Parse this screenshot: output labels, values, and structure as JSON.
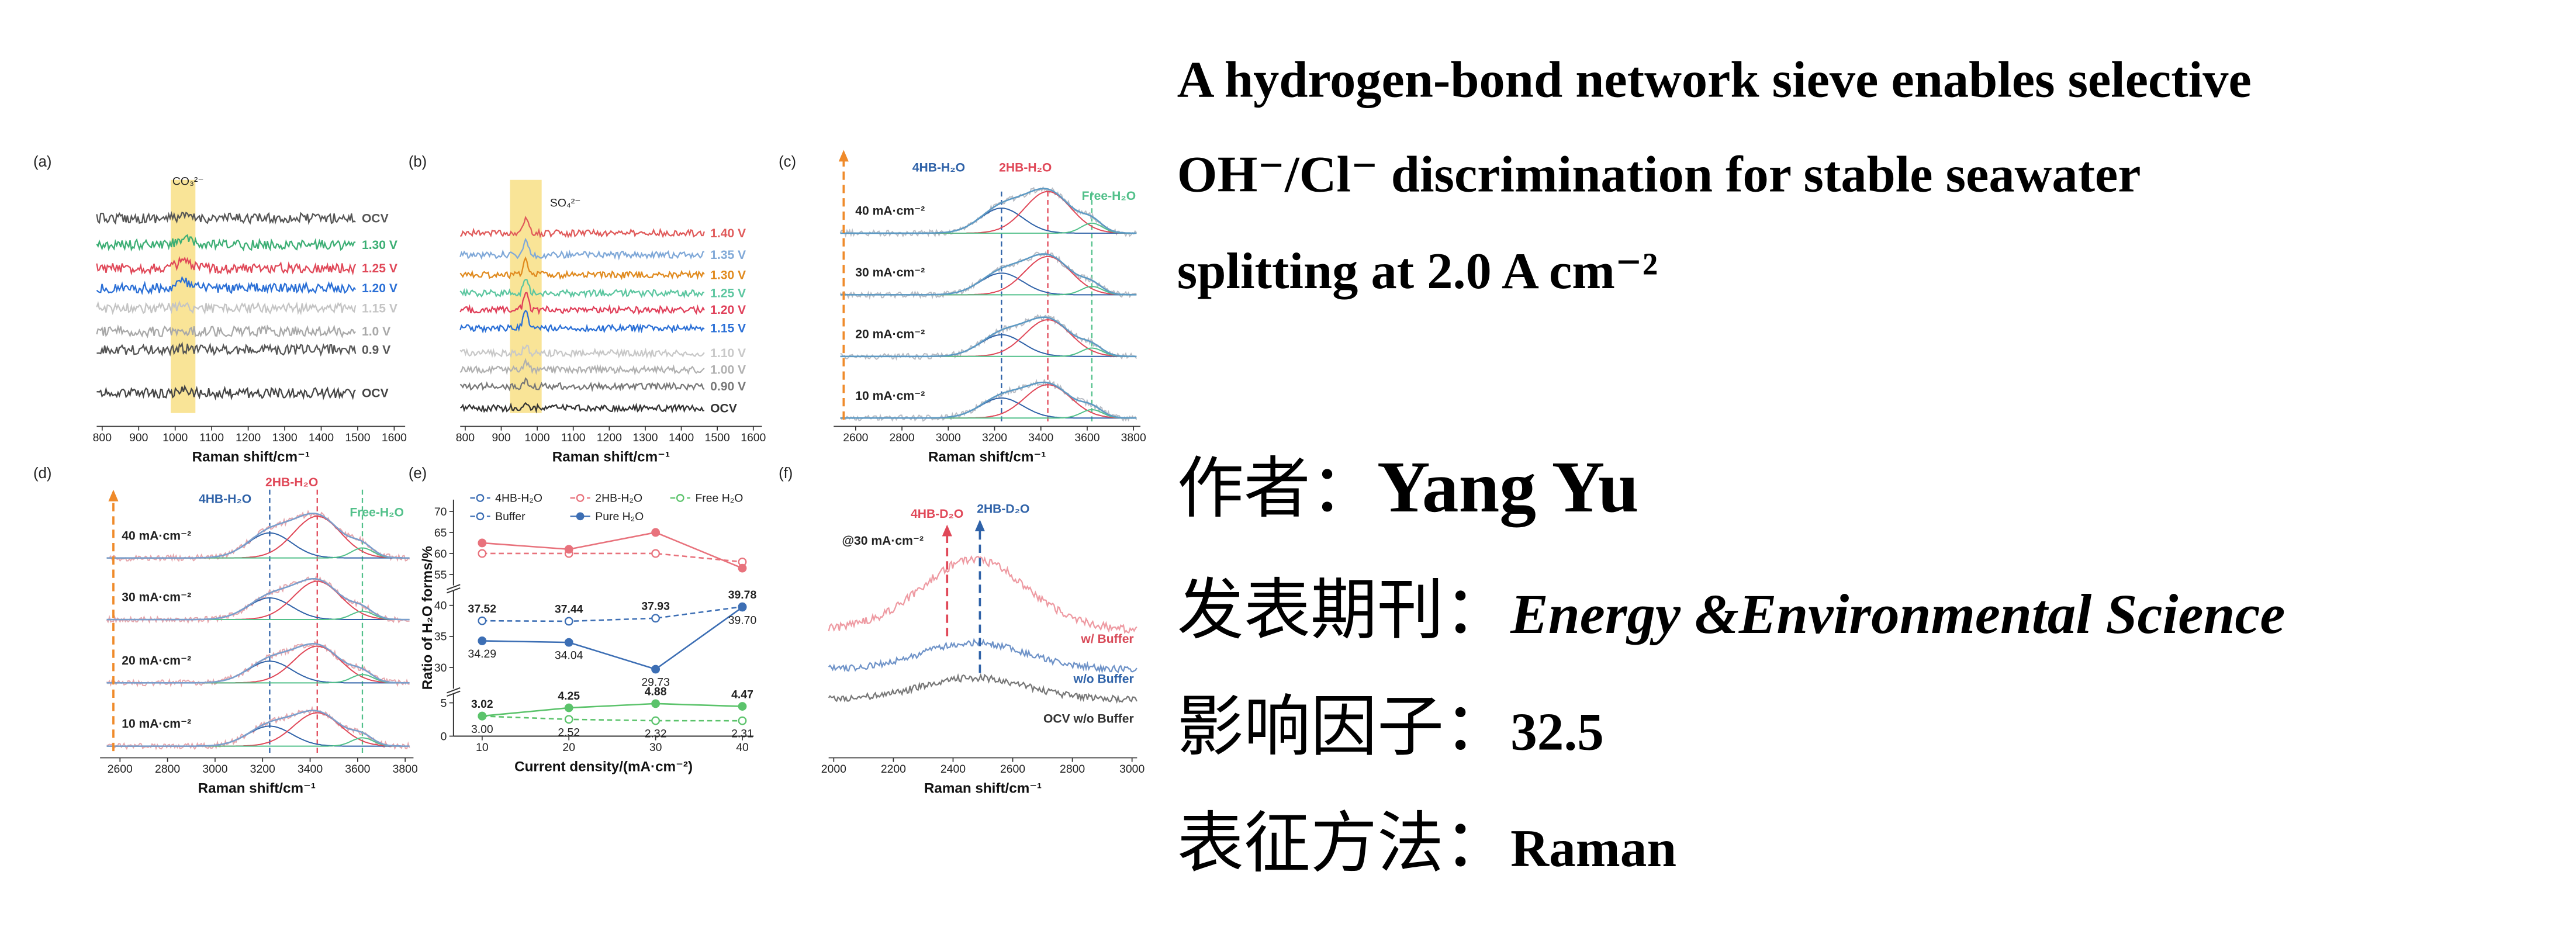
{
  "figure": {
    "panels": [
      {
        "type": "stack",
        "tag": "(a)",
        "xlabel": "Raman shift/cm⁻¹",
        "annotation": "CO₃²⁻",
        "xlim": [
          785,
          1630
        ],
        "xticks": [
          800,
          900,
          1000,
          1100,
          1200,
          1300,
          1400,
          1500,
          1600
        ],
        "curves": [
          {
            "label": "OCV",
            "color": "#555555"
          },
          {
            "label": "1.30 V",
            "color": "#3cae74"
          },
          {
            "label": "1.25 V",
            "color": "#e04858"
          },
          {
            "label": "1.20 V",
            "color": "#2a6fd6"
          },
          {
            "label": "1.15 V",
            "color": "#c4c4c4"
          },
          {
            "label": "1.0 V",
            "color": "#a8a8a8"
          },
          {
            "label": "0.9 V",
            "color": "#555555"
          },
          {
            "label": "OCV",
            "color": "#444444"
          }
        ]
      },
      {
        "type": "stack",
        "tag": "(b)",
        "xlabel": "Raman shift/cm⁻¹",
        "annotation": "SO₄²⁻",
        "xlim": [
          786,
          1624
        ],
        "xticks": [
          800,
          900,
          1000,
          1100,
          1200,
          1300,
          1400,
          1500,
          1600
        ],
        "curves": [
          {
            "label": "1.40 V",
            "color": "#e05a5a"
          },
          {
            "label": "1.35 V",
            "color": "#7fa8d8"
          },
          {
            "label": "1.30 V",
            "color": "#e08a1e"
          },
          {
            "label": "1.25 V",
            "color": "#5cc6a0"
          },
          {
            "label": "1.20 V",
            "color": "#e0405a"
          },
          {
            "label": "1.15 V",
            "color": "#2a6fd6"
          },
          {
            "label": "1.10 V",
            "color": "#c8c8c8"
          },
          {
            "label": "1.00 V",
            "color": "#b0b0b0"
          },
          {
            "label": "0.90 V",
            "color": "#777777"
          },
          {
            "label": "OCV",
            "color": "#333333"
          }
        ]
      },
      {
        "type": "fit",
        "tag": "(c)",
        "xlabel": "Raman shift/cm⁻¹",
        "data_color": "#b8bcc4",
        "fit_color": "#5d9ac4",
        "xlim": [
          2505,
          3830
        ],
        "xticks": [
          2600,
          2800,
          3000,
          3200,
          3400,
          3600,
          3800
        ],
        "peaks": [
          {
            "label": "4HB-H₂O",
            "color": "#2f62a8"
          },
          {
            "label": "2HB-H₂O",
            "color": "#e04858"
          },
          {
            "label": "Free-H₂O",
            "color": "#52c08a"
          }
        ],
        "curves": [
          {
            "label": "40 mA·cm⁻²"
          },
          {
            "label": "30 mA·cm⁻²"
          },
          {
            "label": "20 mA·cm⁻²"
          },
          {
            "label": "10 mA·cm⁻²"
          }
        ]
      },
      {
        "type": "fit",
        "tag": "(d)",
        "xlabel": "Raman shift/cm⁻¹",
        "data_color": "#e6a6ac",
        "fit_color": "#7b9fcc",
        "xlim": [
          2516,
          3835
        ],
        "xticks": [
          2600,
          2800,
          3000,
          3200,
          3400,
          3600,
          3800
        ],
        "peaks": [
          {
            "label": "4HB-H₂O",
            "color": "#2f62a8"
          },
          {
            "label": "2HB-H₂O",
            "color": "#e04858"
          },
          {
            "label": "Free-H₂O",
            "color": "#52c08a"
          }
        ],
        "curves": [
          {
            "label": "40 mA·cm⁻²"
          },
          {
            "label": "30 mA·cm⁻²"
          },
          {
            "label": "20 mA·cm⁻²"
          },
          {
            "label": "10 mA·cm⁻²"
          }
        ]
      },
      {
        "type": "ratio",
        "tag": "(e)",
        "xlabel": "Current density/(mA·cm⁻²)",
        "ylabel": "Ratio of H₂O forms/%",
        "x": [
          10,
          20,
          30,
          40
        ],
        "xlim": [
          6.7,
          41.3
        ],
        "xticks": [
          10,
          20,
          30,
          40
        ],
        "ylim_segments": [
          [
            0,
            6
          ],
          [
            27,
            42
          ],
          [
            53,
            72
          ]
        ],
        "yticks": [
          0,
          5,
          30,
          35,
          40,
          55,
          60,
          65,
          70
        ],
        "forms": [
          {
            "name": "4HB-H₂O",
            "color": "#3c6eb4"
          },
          {
            "name": "2HB-H₂O",
            "color": "#e8727c"
          },
          {
            "name": "Free H₂O",
            "color": "#5bc36b"
          }
        ],
        "conditions": [
          {
            "name": "Buffer",
            "dashed": true,
            "filled": false
          },
          {
            "name": "Pure H₂O",
            "dashed": false,
            "filled": true
          }
        ],
        "series": [
          {
            "form": 0,
            "condition": 0,
            "values": [
              37.52,
              37.44,
              37.93,
              39.78
            ]
          },
          {
            "form": 0,
            "condition": 1,
            "values": [
              34.29,
              34.04,
              29.73,
              39.7
            ],
            "value_labels": [
              "34.29",
              "34.04",
              "29.73",
              "39.70"
            ]
          },
          {
            "form": 1,
            "condition": 0,
            "values": [
              60,
              60,
              60,
              58
            ]
          },
          {
            "form": 1,
            "condition": 1,
            "values": [
              62.5,
              61,
              65,
              56.5
            ]
          },
          {
            "form": 2,
            "condition": 0,
            "values": [
              3.0,
              2.52,
              2.32,
              2.31
            ],
            "value_labels": [
              "3.00",
              "2.52",
              "2.32",
              "2.31"
            ]
          },
          {
            "form": 2,
            "condition": 1,
            "values": [
              3.02,
              4.25,
              4.88,
              4.47
            ]
          }
        ]
      },
      {
        "type": "compare",
        "tag": "(f)",
        "xlabel": "Raman shift/cm⁻¹",
        "annotation": "@30 mA·cm⁻²",
        "xlim": [
          1983,
          3017
        ],
        "xticks": [
          2000,
          2200,
          2400,
          2600,
          2800,
          3000
        ],
        "peaks": [
          {
            "label": "4HB-D₂O",
            "color": "#e04858"
          },
          {
            "label": "2HB-D₂O",
            "color": "#2f62a8"
          }
        ],
        "curves": [
          {
            "label": "w/ Buffer",
            "color": "#ee9aa2",
            "label_color": "#d84a58"
          },
          {
            "label": "w/o Buffer",
            "color": "#6f93c8",
            "label_color": "#2f62a8"
          },
          {
            "label": "OCV w/o Buffer",
            "color": "#777777",
            "label_color": "#333333"
          }
        ]
      }
    ]
  },
  "title": {
    "lines": [
      "A hydrogen-bond network sieve enables selective",
      "OH⁻/Cl⁻ discrimination for stable seawater",
      "splitting at 2.0 A cm⁻²"
    ]
  },
  "info": [
    {
      "label": "作者：",
      "value": "Yang Yu"
    },
    {
      "label": "发表期刊：",
      "value": "Energy &Environmental Science"
    },
    {
      "label": "影响因子：",
      "value": "32.5"
    },
    {
      "label": "表征方法：",
      "value": "Raman"
    }
  ]
}
